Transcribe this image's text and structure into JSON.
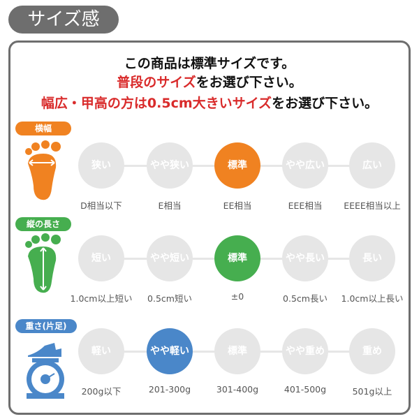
{
  "title": "サイズ感",
  "message": {
    "line1": "この商品は標準サイズです。",
    "line2_red": "普段のサイズ",
    "line2_rest": "をお選び下さい。",
    "line3_red": "幅広・甲高の方は0.5cm大きいサイズ",
    "line3_rest": "をお選び下さい。"
  },
  "colors": {
    "width": "#f08221",
    "length": "#46ae4f",
    "weight": "#4a87c9",
    "inactive": "#e6e6e6",
    "title_bg": "#6e6e6e",
    "emphasis": "#d92b2b"
  },
  "rows": [
    {
      "label": "横幅",
      "icon": "foot-width-icon",
      "selected_index": 2,
      "options": [
        "狭い",
        "やや狭い",
        "標準",
        "やや広い",
        "広い"
      ],
      "notes": [
        "D相当以下",
        "E相当",
        "EE相当",
        "EEE相当",
        "EEEE相当以上"
      ]
    },
    {
      "label": "縦の長さ",
      "icon": "foot-length-icon",
      "selected_index": 2,
      "options": [
        "短い",
        "やや短い",
        "標準",
        "やや長い",
        "長い"
      ],
      "notes": [
        "1.0cm以上短い",
        "0.5cm短い",
        "±0",
        "0.5cm長い",
        "1.0cm以上長い"
      ]
    },
    {
      "label": "重さ(片足)",
      "icon": "scale-icon",
      "selected_index": 1,
      "options": [
        "軽い",
        "やや軽い",
        "標準",
        "やや重め",
        "重め"
      ],
      "notes": [
        "200g以下",
        "201-300g",
        "301-400g",
        "401-500g",
        "501g以上"
      ]
    }
  ]
}
